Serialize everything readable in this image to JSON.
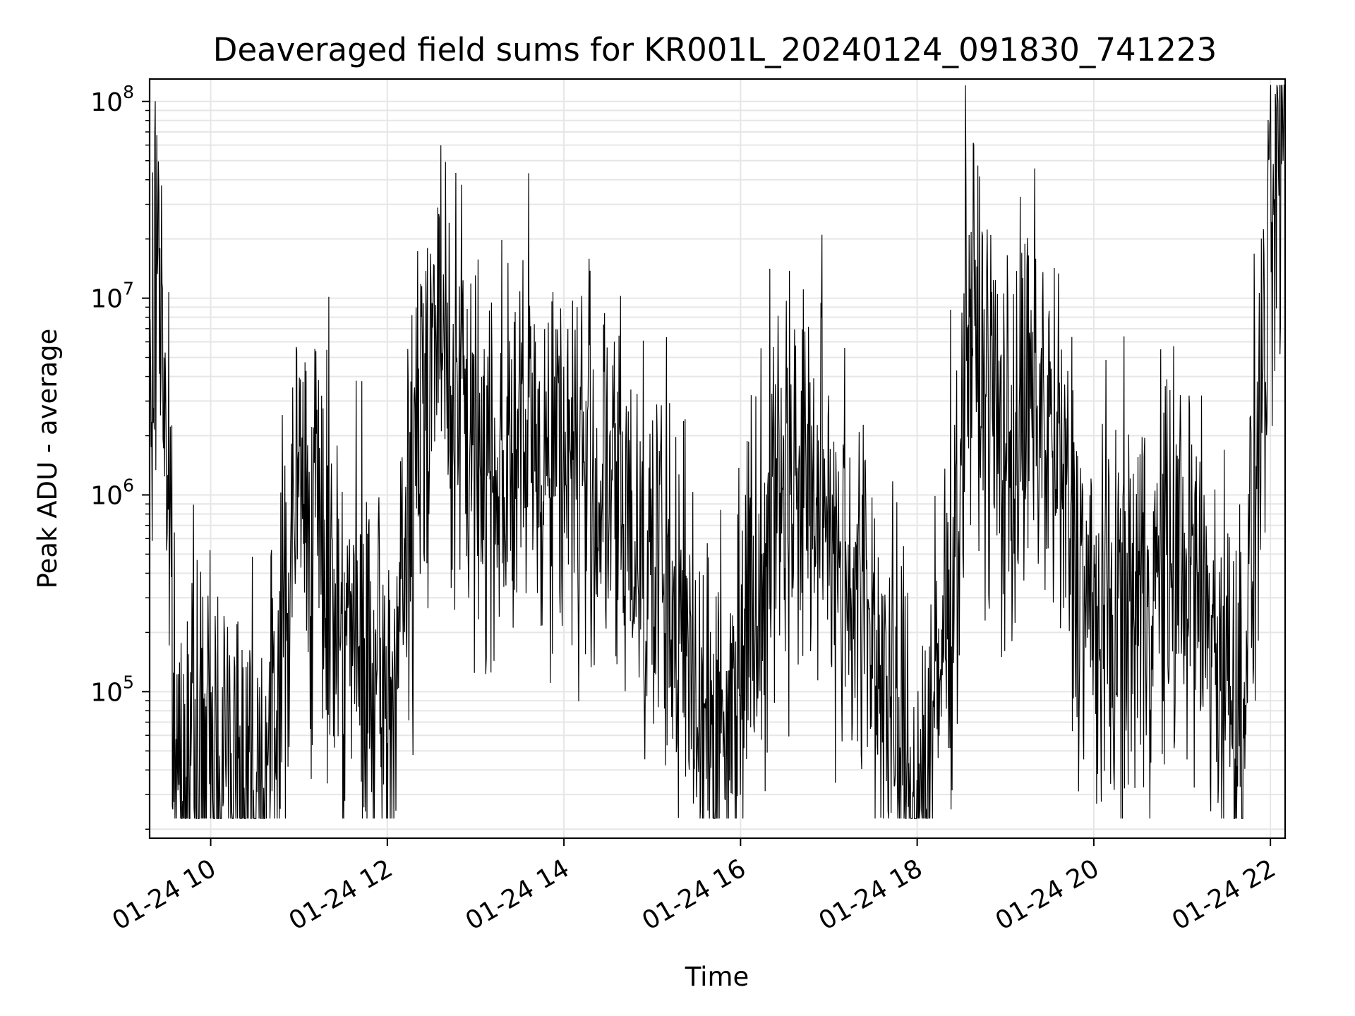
{
  "chart_data": {
    "type": "line",
    "title": "Deaveraged field sums for KR001L_20240124_091830_741223",
    "xlabel": "Time",
    "ylabel": "Peak ADU - average",
    "y_scale": "log",
    "grid": true,
    "line_color": "#000000",
    "grid_color": "#e6e6e6",
    "x_range": [
      "2024-01-24T09:18:30",
      "2024-01-24T22:10:00"
    ],
    "y_range": [
      18000,
      130000000
    ],
    "x_ticks": [
      {
        "time": "2024-01-24T10:00",
        "label": "01-24 10"
      },
      {
        "time": "2024-01-24T12:00",
        "label": "01-24 12"
      },
      {
        "time": "2024-01-24T14:00",
        "label": "01-24 14"
      },
      {
        "time": "2024-01-24T16:00",
        "label": "01-24 16"
      },
      {
        "time": "2024-01-24T18:00",
        "label": "01-24 18"
      },
      {
        "time": "2024-01-24T20:00",
        "label": "01-24 20"
      },
      {
        "time": "2024-01-24T22:00",
        "label": "01-24 22"
      }
    ],
    "y_ticks": [
      {
        "value": 100000,
        "base": "10",
        "exp": "5"
      },
      {
        "value": 1000000,
        "base": "10",
        "exp": "6"
      },
      {
        "value": 10000000,
        "base": "10",
        "exp": "7"
      },
      {
        "value": 100000000,
        "base": "10",
        "exp": "8"
      }
    ],
    "series": [
      {
        "points": [
          [
            "2024-01-24T09:18",
            900000
          ],
          [
            "2024-01-24T09:24",
            30000000
          ],
          [
            "2024-01-24T09:30",
            2000000
          ],
          [
            "2024-01-24T09:36",
            40000
          ],
          [
            "2024-01-24T10:00",
            45000
          ],
          [
            "2024-01-24T10:40",
            40000
          ],
          [
            "2024-01-24T11:00",
            1200000
          ],
          [
            "2024-01-24T12:00",
            55000
          ],
          [
            "2024-01-24T12:30",
            8000000
          ],
          [
            "2024-01-24T13:00",
            1500000
          ],
          [
            "2024-01-24T14:00",
            1800000
          ],
          [
            "2024-01-24T15:00",
            500000
          ],
          [
            "2024-01-24T15:50",
            45000
          ],
          [
            "2024-01-24T16:00",
            200000
          ],
          [
            "2024-01-24T16:30",
            1500000
          ],
          [
            "2024-01-24T17:00",
            800000
          ],
          [
            "2024-01-24T17:30",
            200000
          ],
          [
            "2024-01-24T17:45",
            60000
          ],
          [
            "2024-01-24T18:00",
            25000
          ],
          [
            "2024-01-24T18:10",
            50000
          ],
          [
            "2024-01-24T18:30",
            1200000
          ],
          [
            "2024-01-24T18:33",
            9000000
          ],
          [
            "2024-01-24T19:00",
            1500000
          ],
          [
            "2024-01-24T19:20",
            3000000
          ],
          [
            "2024-01-24T19:30",
            2000000
          ],
          [
            "2024-01-24T20:00",
            200000
          ],
          [
            "2024-01-24T20:30",
            300000
          ],
          [
            "2024-01-24T21:00",
            500000
          ],
          [
            "2024-01-24T21:40",
            80000
          ],
          [
            "2024-01-24T22:00",
            15000000
          ],
          [
            "2024-01-24T22:10",
            90000000
          ]
        ]
      }
    ]
  }
}
